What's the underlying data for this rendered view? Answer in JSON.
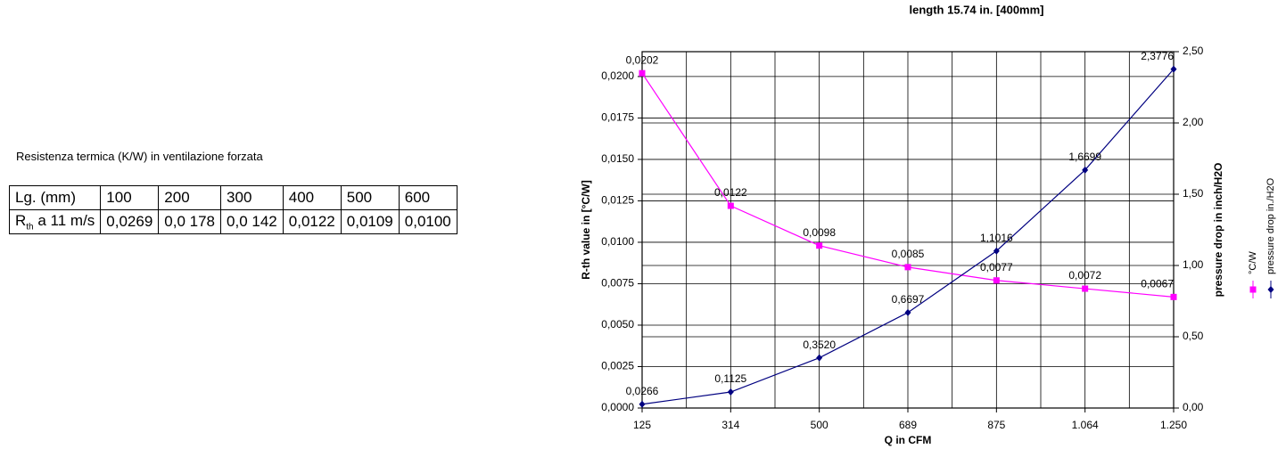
{
  "table": {
    "caption": "Resistenza termica (K/W) in ventilazione forzata",
    "rows": [
      [
        "Lg. (mm)",
        "100",
        "200",
        "300",
        "400",
        "500",
        "600"
      ],
      [
        {
          "main": "R",
          "sub": "th",
          "rest": "a 11 m/s"
        },
        "0,0269",
        "0,0 178",
        "0,0 142",
        "0,0122",
        "0,0109",
        "0,0100"
      ]
    ]
  },
  "chart_data": {
    "type": "line",
    "title": "length 15.74 in. [400mm]",
    "x_label": "Q in CFM",
    "y_label": "R-th value in [°C/W]",
    "y2_label": "pressure drop in inch/H2O",
    "categories": [
      "125",
      "314",
      "500",
      "689",
      "875",
      "1.064",
      "1.250"
    ],
    "ylim": [
      0,
      0.0215
    ],
    "yticks": [
      {
        "value": 0,
        "label": "0,0000"
      },
      {
        "value": 0.0025,
        "label": "0,0025"
      },
      {
        "value": 0.005,
        "label": "0,0050"
      },
      {
        "value": 0.0075,
        "label": "0,0075"
      },
      {
        "value": 0.01,
        "label": "0,0100"
      },
      {
        "value": 0.0125,
        "label": "0,0125"
      },
      {
        "value": 0.015,
        "label": "0,0150"
      },
      {
        "value": 0.0175,
        "label": "0,0175"
      },
      {
        "value": 0.02,
        "label": "0,0200"
      }
    ],
    "y2lim": [
      0,
      2.5
    ],
    "y2ticks": [
      {
        "value": 0,
        "label": "0,00"
      },
      {
        "value": 0.5,
        "label": "0,50"
      },
      {
        "value": 1,
        "label": "1,00"
      },
      {
        "value": 1.5,
        "label": "1,50"
      },
      {
        "value": 2,
        "label": "2,00"
      },
      {
        "value": 2.5,
        "label": "2,50"
      }
    ],
    "grid": true,
    "series": [
      {
        "name": "°C/W",
        "color": "#ff00ff",
        "marker": "square",
        "values": [
          0.0202,
          0.0122,
          0.0098,
          0.0085,
          0.0077,
          0.0072,
          0.0067
        ],
        "value_labels": [
          "0,0202",
          "0,0122",
          "0,0098",
          "0,0085",
          "0,0077",
          "0,0072",
          "0,0067"
        ]
      },
      {
        "name": "pressure drop in./H2O",
        "color": "#000080",
        "marker": "diamond",
        "axis": "y2",
        "values": [
          0.0266,
          0.1125,
          0.352,
          0.6697,
          1.1016,
          1.6699,
          2.3776
        ],
        "value_labels": [
          "0,0266",
          "0,1125",
          "0,3520",
          "0,6697",
          "1,1016",
          "1,6699",
          "2,3776"
        ]
      }
    ]
  }
}
